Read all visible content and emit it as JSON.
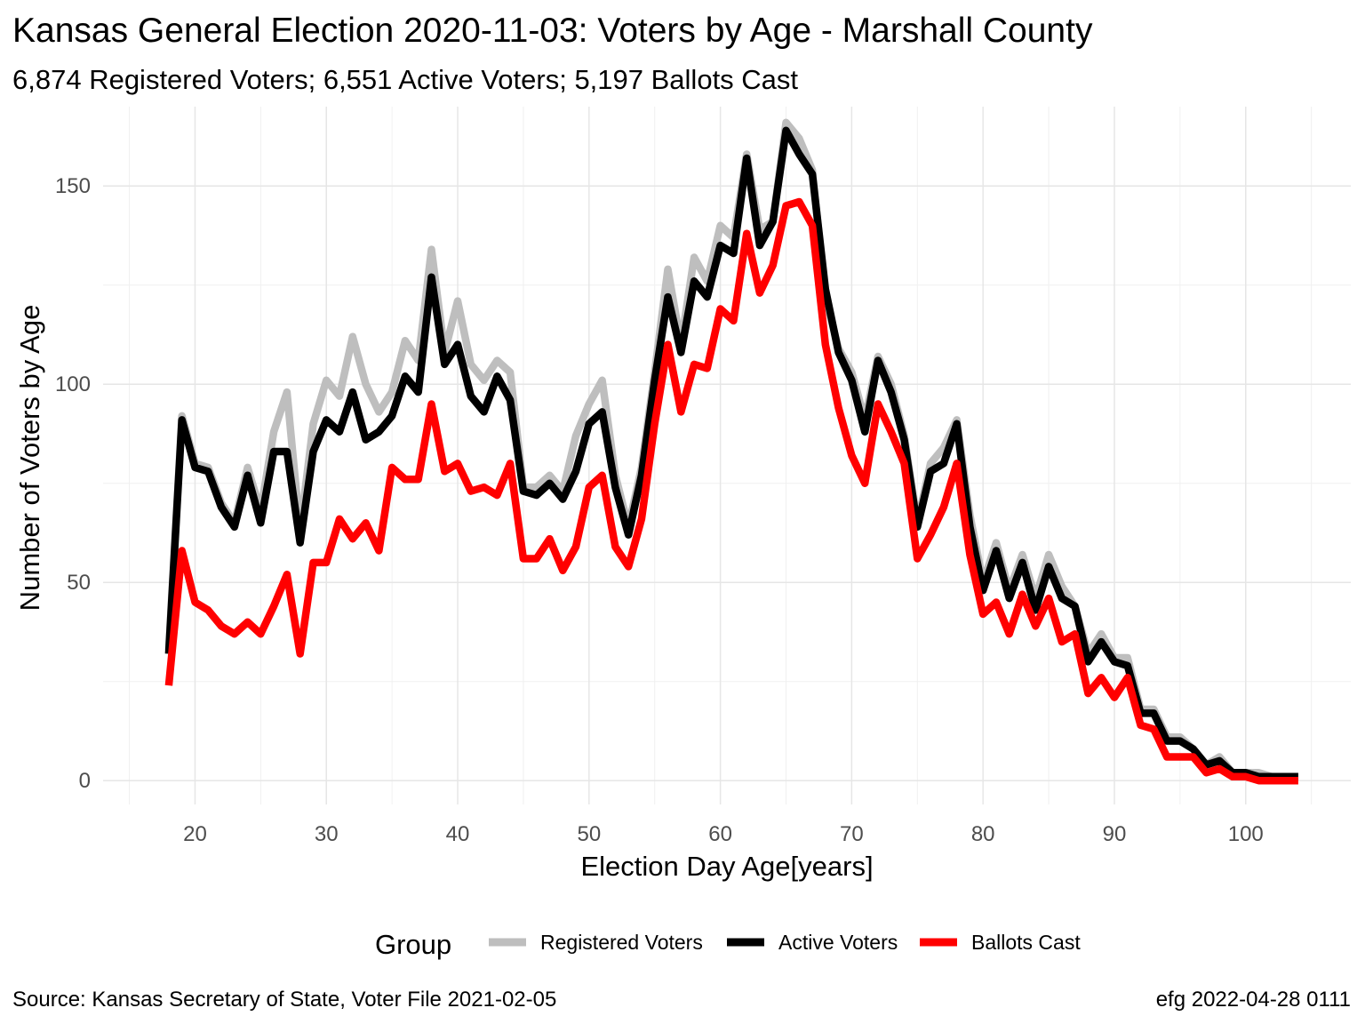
{
  "chart_data": {
    "type": "line",
    "title": "Kansas General Election 2020-11-03:  Voters by Age - Marshall County",
    "subtitle": "6,874 Registered Voters; 6,551 Active Voters; 5,197 Ballots Cast",
    "xlabel": "Election Day Age[years]",
    "ylabel": "Number of Voters by Age",
    "xlim": [
      13,
      108
    ],
    "ylim": [
      -6,
      170
    ],
    "x_ticks": [
      20,
      30,
      40,
      50,
      60,
      70,
      80,
      90,
      100
    ],
    "y_ticks": [
      0,
      50,
      100,
      150
    ],
    "grid": true,
    "legend_title": "Group",
    "legend_position": "bottom",
    "source": "Source:  Kansas Secretary of State, Voter File  2021-02-05",
    "credit": "efg 2022-04-28 0111",
    "x": [
      18,
      19,
      20,
      21,
      22,
      23,
      24,
      25,
      26,
      27,
      28,
      29,
      30,
      31,
      32,
      33,
      34,
      35,
      36,
      37,
      38,
      39,
      40,
      41,
      42,
      43,
      44,
      45,
      46,
      47,
      48,
      49,
      50,
      51,
      52,
      53,
      54,
      55,
      56,
      57,
      58,
      59,
      60,
      61,
      62,
      63,
      64,
      65,
      66,
      67,
      68,
      69,
      70,
      71,
      72,
      73,
      74,
      75,
      76,
      77,
      78,
      79,
      80,
      81,
      82,
      83,
      84,
      85,
      86,
      87,
      88,
      89,
      90,
      91,
      92,
      93,
      94,
      95,
      96,
      97,
      98,
      99,
      100,
      101,
      102,
      103,
      104
    ],
    "series": [
      {
        "name": "Registered Voters",
        "color": "#bebebe",
        "values": [
          33,
          92,
          80,
          79,
          70,
          65,
          79,
          68,
          88,
          98,
          63,
          90,
          101,
          97,
          112,
          100,
          93,
          98,
          111,
          106,
          134,
          108,
          121,
          105,
          101,
          106,
          103,
          74,
          74,
          77,
          73,
          87,
          95,
          101,
          77,
          64,
          79,
          103,
          129,
          110,
          132,
          126,
          140,
          137,
          158,
          139,
          141,
          166,
          162,
          154,
          122,
          109,
          103,
          91,
          107,
          100,
          87,
          65,
          80,
          84,
          91,
          67,
          50,
          60,
          48,
          57,
          46,
          57,
          49,
          44,
          32,
          37,
          31,
          31,
          18,
          18,
          11,
          11,
          8,
          4,
          6,
          2,
          2,
          2,
          1,
          1,
          1
        ]
      },
      {
        "name": "Active Voters",
        "color": "#000000",
        "values": [
          32,
          91,
          79,
          78,
          69,
          64,
          77,
          65,
          83,
          83,
          60,
          83,
          91,
          88,
          98,
          86,
          88,
          92,
          102,
          98,
          127,
          105,
          110,
          97,
          93,
          102,
          96,
          73,
          72,
          75,
          71,
          78,
          90,
          93,
          74,
          62,
          77,
          101,
          122,
          108,
          126,
          122,
          135,
          133,
          157,
          135,
          141,
          164,
          158,
          153,
          124,
          108,
          101,
          88,
          106,
          98,
          86,
          64,
          78,
          80,
          90,
          64,
          48,
          58,
          46,
          55,
          43,
          54,
          46,
          44,
          30,
          35,
          30,
          29,
          17,
          17,
          10,
          10,
          8,
          4,
          5,
          2,
          2,
          1,
          1,
          1,
          1
        ]
      },
      {
        "name": "Ballots Cast",
        "color": "#ff0000",
        "values": [
          24,
          58,
          45,
          43,
          39,
          37,
          40,
          37,
          44,
          52,
          32,
          55,
          55,
          66,
          61,
          65,
          58,
          79,
          76,
          76,
          95,
          78,
          80,
          73,
          74,
          72,
          80,
          56,
          56,
          61,
          53,
          59,
          74,
          77,
          59,
          54,
          66,
          90,
          110,
          93,
          105,
          104,
          119,
          116,
          138,
          123,
          130,
          145,
          146,
          140,
          110,
          94,
          82,
          75,
          95,
          88,
          80,
          56,
          62,
          69,
          80,
          57,
          42,
          45,
          37,
          47,
          39,
          46,
          35,
          37,
          22,
          26,
          21,
          26,
          14,
          13,
          6,
          6,
          6,
          2,
          3,
          1,
          1,
          0,
          0,
          0,
          0
        ]
      }
    ]
  }
}
